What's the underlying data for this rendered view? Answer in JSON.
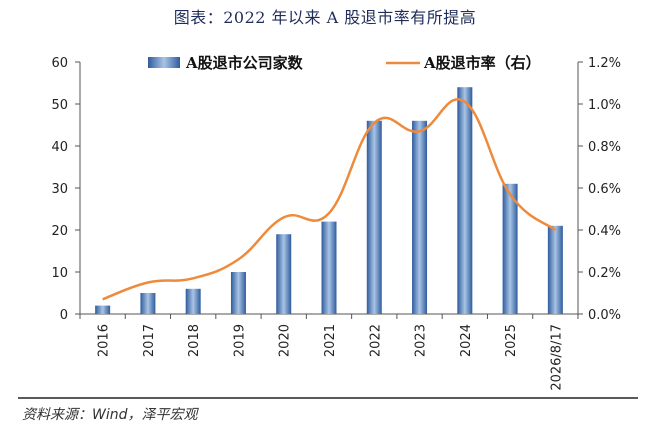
{
  "page": {
    "title": "图表：2022 年以来 A 股退市率有所提高",
    "source": "资料来源：Wind，泽平宏观"
  },
  "chart_data": {
    "type": "bar",
    "categories": [
      "2016",
      "2017",
      "2018",
      "2019",
      "2020",
      "2021",
      "2022",
      "2023",
      "2024",
      "2025",
      "2026/8/17"
    ],
    "series": [
      {
        "name": "A股退市公司家数",
        "type": "bar",
        "axis": "left",
        "values": [
          2,
          5,
          6,
          10,
          19,
          22,
          46,
          46,
          54,
          31,
          21
        ]
      },
      {
        "name": "A股退市率（右）",
        "type": "line",
        "axis": "right",
        "values": [
          0.07,
          0.15,
          0.17,
          0.26,
          0.46,
          0.48,
          0.91,
          0.87,
          1.01,
          0.57,
          0.4
        ]
      }
    ],
    "ylim_left": [
      0,
      60
    ],
    "yticks_left": [
      "0",
      "10",
      "20",
      "30",
      "40",
      "50",
      "60"
    ],
    "ylim_right": [
      0,
      1.2
    ],
    "yticks_right": [
      "0.0%",
      "0.2%",
      "0.4%",
      "0.6%",
      "0.8%",
      "1.0%",
      "1.2%"
    ],
    "legend_position": "top",
    "grid": false,
    "colors": {
      "bar": "#3f6fb0",
      "bar_light": "#a9c4e4",
      "line": "#ee8a3c"
    }
  }
}
